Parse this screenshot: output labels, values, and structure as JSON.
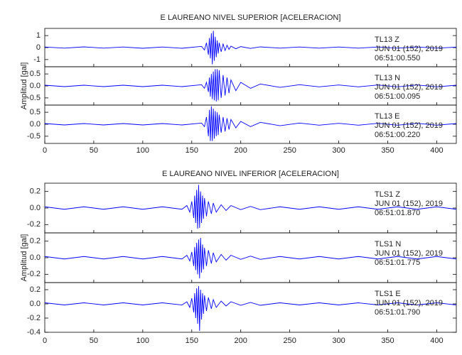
{
  "chart_data": [
    {
      "type": "line",
      "title": "E LAUREANO NIVEL SUPERIOR [ACELERACION]",
      "ylabel": "Amplitud [gal]",
      "color": "#0000ff",
      "xlim": [
        0,
        420
      ],
      "xticks": [
        0,
        50,
        100,
        150,
        200,
        250,
        300,
        350,
        400
      ],
      "x": [
        0,
        20,
        40,
        60,
        80,
        100,
        120,
        140,
        160,
        163,
        165,
        167,
        168,
        169,
        170,
        171,
        172,
        173,
        174,
        175,
        176,
        177,
        178,
        180,
        182,
        184,
        186,
        188,
        190,
        195,
        200,
        210,
        220,
        240,
        260,
        280,
        300,
        320,
        340,
        360,
        380,
        400,
        420
      ],
      "series": [
        {
          "name": "TL13  Z",
          "date": "JUN 01 (152), 2019",
          "time": "06:51:00.550",
          "ylim": [
            -1.6,
            1.6
          ],
          "yticks": [
            -1,
            0,
            1
          ],
          "values": [
            0.05,
            -0.05,
            0.06,
            -0.05,
            0.05,
            -0.06,
            0.05,
            -0.06,
            0.1,
            -0.2,
            0.4,
            -0.6,
            0.8,
            -0.9,
            1.2,
            -1.4,
            1.4,
            -1.1,
            0.9,
            -0.8,
            0.6,
            -0.5,
            0.4,
            -0.35,
            0.3,
            -0.25,
            0.2,
            -0.15,
            0.12,
            -0.1,
            0.08,
            -0.07,
            0.06,
            -0.05,
            0.05,
            -0.05,
            0.05,
            -0.05,
            0.05,
            -0.05,
            0.05,
            -0.05,
            0.04
          ]
        },
        {
          "name": "TL13  N",
          "date": "JUN 01 (152), 2019",
          "time": "06:51:00.095",
          "ylim": [
            -0.8,
            0.8
          ],
          "yticks": [
            -0.5,
            {
              "value": 0,
              "label": "0.0"
            },
            0.5
          ],
          "values": [
            0.03,
            -0.03,
            0.03,
            -0.03,
            0.03,
            -0.03,
            0.03,
            -0.03,
            0.05,
            -0.1,
            0.15,
            -0.25,
            0.35,
            -0.45,
            0.5,
            -0.55,
            0.6,
            -0.6,
            0.7,
            -0.65,
            0.7,
            -0.6,
            0.65,
            -0.5,
            0.45,
            -0.4,
            0.35,
            -0.3,
            0.25,
            -0.2,
            0.15,
            -0.1,
            0.08,
            -0.06,
            0.05,
            -0.04,
            0.04,
            -0.04,
            0.04,
            -0.04,
            0.04,
            -0.04,
            0.03
          ]
        },
        {
          "name": "TL13  E",
          "date": "JUN 01 (152), 2019",
          "time": "06:51:00.220",
          "ylim": [
            -0.8,
            0.8
          ],
          "yticks": [
            -0.5,
            {
              "value": 0,
              "label": "0.0"
            },
            0.5
          ],
          "values": [
            0.03,
            -0.03,
            0.03,
            -0.03,
            0.03,
            -0.03,
            0.03,
            -0.03,
            0.05,
            -0.1,
            0.3,
            -0.5,
            0.6,
            -0.7,
            0.75,
            -0.7,
            0.65,
            -0.6,
            0.55,
            -0.5,
            0.5,
            -0.45,
            0.4,
            -0.35,
            0.3,
            -0.3,
            0.25,
            -0.22,
            0.2,
            -0.15,
            0.12,
            -0.1,
            0.08,
            -0.06,
            0.05,
            -0.04,
            0.04,
            -0.04,
            0.04,
            -0.04,
            0.04,
            -0.04,
            0.03
          ]
        }
      ]
    },
    {
      "type": "line",
      "title": "E LAUREANO NIVEL INFERIOR [ACELERACION]",
      "ylabel": "Amplitud [gal]",
      "color": "#0000ff",
      "xlim": [
        0,
        420
      ],
      "xticks": [
        0,
        50,
        100,
        150,
        200,
        250,
        300,
        350,
        400
      ],
      "x": [
        0,
        20,
        40,
        60,
        80,
        100,
        120,
        140,
        145,
        148,
        150,
        152,
        153,
        154,
        155,
        156,
        157,
        158,
        159,
        160,
        161,
        162,
        163,
        165,
        167,
        170,
        172,
        175,
        180,
        185,
        190,
        200,
        210,
        220,
        240,
        260,
        280,
        300,
        320,
        340,
        360,
        380,
        400,
        420
      ],
      "series": [
        {
          "name": "TLS1  Z",
          "date": "JUN 01 (152), 2019",
          "time": "06:51:01.870",
          "ylim": [
            -0.3,
            0.3
          ],
          "yticks": [
            -0.2,
            {
              "value": 0,
              "label": "0.0"
            },
            0.2
          ],
          "values": [
            0.015,
            -0.015,
            0.015,
            -0.015,
            0.015,
            -0.015,
            0.015,
            -0.015,
            0.03,
            -0.05,
            0.08,
            -0.12,
            0.15,
            -0.18,
            0.22,
            -0.25,
            0.28,
            -0.24,
            0.2,
            -0.18,
            0.15,
            -0.13,
            0.12,
            -0.1,
            0.08,
            -0.07,
            0.06,
            -0.05,
            0.04,
            -0.03,
            0.03,
            -0.02,
            0.02,
            -0.02,
            0.015,
            -0.015,
            0.015,
            -0.015,
            0.015,
            -0.015,
            0.015,
            -0.015,
            0.015,
            -0.015
          ]
        },
        {
          "name": "TLS1  N",
          "date": "JUN 01 (152), 2019",
          "time": "06:51:01.775",
          "ylim": [
            -0.3,
            0.3
          ],
          "yticks": [
            -0.2,
            {
              "value": 0,
              "label": "0.0"
            },
            0.2
          ],
          "values": [
            0.015,
            -0.015,
            0.015,
            -0.015,
            0.015,
            -0.015,
            0.015,
            -0.015,
            0.03,
            -0.04,
            0.07,
            -0.1,
            0.13,
            -0.15,
            0.18,
            -0.2,
            0.22,
            -0.25,
            0.24,
            -0.18,
            0.16,
            -0.14,
            0.12,
            -0.1,
            0.09,
            -0.07,
            0.06,
            -0.05,
            0.04,
            -0.03,
            0.03,
            -0.02,
            0.02,
            -0.02,
            0.015,
            -0.015,
            0.015,
            -0.015,
            0.015,
            -0.015,
            0.015,
            -0.015,
            0.015,
            -0.015
          ]
        },
        {
          "name": "TLS1  E",
          "date": "JUN 01 (152), 2019",
          "time": "06:51:01.790",
          "ylim": [
            -0.4,
            0.3
          ],
          "yticks": [
            -0.4,
            -0.2,
            {
              "value": 0,
              "label": "0.0"
            },
            0.2
          ],
          "values": [
            0.015,
            -0.015,
            0.015,
            -0.015,
            0.015,
            -0.015,
            0.015,
            -0.015,
            0.03,
            -0.05,
            0.08,
            -0.12,
            0.15,
            -0.2,
            0.22,
            -0.28,
            0.25,
            -0.38,
            0.2,
            -0.22,
            0.15,
            -0.14,
            0.12,
            -0.1,
            0.09,
            -0.07,
            0.06,
            -0.05,
            0.04,
            -0.03,
            0.03,
            -0.02,
            0.02,
            -0.02,
            0.015,
            -0.015,
            0.015,
            -0.015,
            0.015,
            -0.015,
            0.015,
            -0.015,
            0.015,
            -0.015
          ]
        }
      ]
    }
  ]
}
